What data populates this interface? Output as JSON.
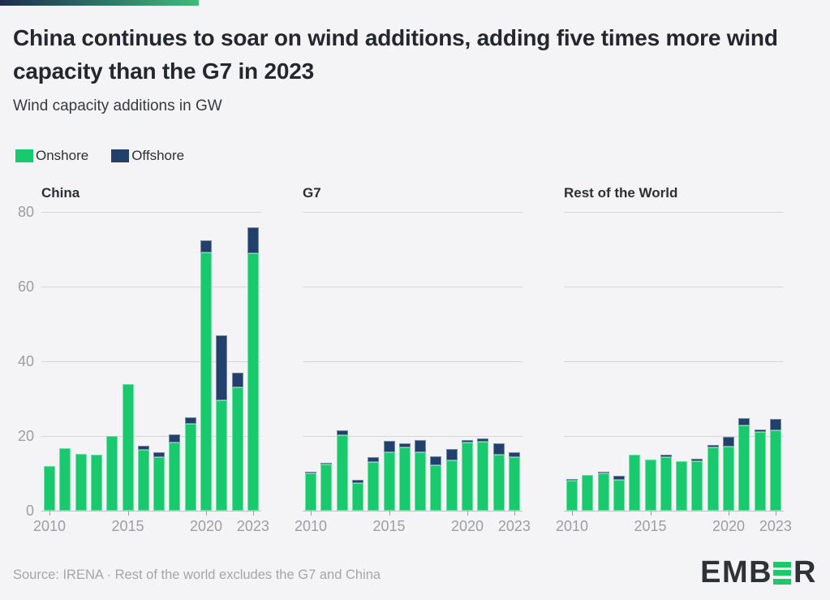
{
  "header": {
    "title": "China continues to soar on wind additions, adding five times more wind capacity than the G7 in 2023",
    "subtitle": "Wind capacity additions in GW"
  },
  "legend": {
    "items": [
      {
        "label": "Onshore",
        "color": "#18ca6d"
      },
      {
        "label": "Offshore",
        "color": "#21406b"
      }
    ]
  },
  "colors": {
    "onshore": "#18ca6d",
    "offshore": "#21406b",
    "background": "#f4f4f6",
    "gridline": "#d6d7da",
    "axis_text": "#9b9ea4",
    "title_text": "#24272d",
    "accent_gradient_start": "#1f2c50",
    "accent_gradient_end": "#3fbc79",
    "logo_dark": "#2d3237",
    "logo_green": "#1ec768"
  },
  "chart_data": {
    "type": "bar",
    "stacked": true,
    "unit": "GW",
    "x": [
      2010,
      2011,
      2012,
      2013,
      2014,
      2015,
      2016,
      2017,
      2018,
      2019,
      2020,
      2021,
      2022,
      2023
    ],
    "xticks": [
      2010,
      2015,
      2020,
      2023
    ],
    "yticks": [
      0,
      20,
      40,
      60,
      80
    ],
    "ylim": [
      0,
      80
    ],
    "grid": true,
    "legend_position": "top-left",
    "panels": [
      {
        "title": "China",
        "series": [
          {
            "name": "Onshore",
            "values": [
              12.0,
              16.8,
              15.2,
              15.0,
              20.0,
              34.0,
              16.4,
              14.4,
              18.3,
              23.3,
              69.1,
              29.5,
              33.0,
              69.0
            ]
          },
          {
            "name": "Offshore",
            "values": [
              0,
              0,
              0,
              0,
              0,
              0,
              0.9,
              1.3,
              2.1,
              1.7,
              3.2,
              17.4,
              4.0,
              6.9
            ]
          }
        ]
      },
      {
        "title": "G7",
        "series": [
          {
            "name": "Onshore",
            "values": [
              10.0,
              12.3,
              20.2,
              7.4,
              13.1,
              15.6,
              16.9,
              15.7,
              12.2,
              13.4,
              18.3,
              18.4,
              15.0,
              14.3
            ]
          },
          {
            "name": "Offshore",
            "values": [
              0.4,
              0.4,
              1.3,
              0.9,
              1.3,
              3.2,
              1.1,
              3.2,
              2.4,
              3.1,
              0.7,
              0.9,
              3.0,
              1.3
            ]
          }
        ]
      },
      {
        "title": "Rest of the World",
        "series": [
          {
            "name": "Onshore",
            "values": [
              8.0,
              9.5,
              10.0,
              8.3,
              15.0,
              13.8,
              14.3,
              13.3,
              13.3,
              17.0,
              17.2,
              22.8,
              21.0,
              21.5
            ]
          },
          {
            "name": "Offshore",
            "values": [
              0.5,
              0,
              0.4,
              1.0,
              0,
              0,
              0.7,
              0,
              0.7,
              0.6,
              2.5,
              2.0,
              0.7,
              3.1
            ]
          }
        ]
      }
    ]
  },
  "footer": {
    "source": "Source: IRENA · Rest of the world excludes the G7 and China",
    "logo_prefix": "EMB",
    "logo_suffix": "R"
  }
}
